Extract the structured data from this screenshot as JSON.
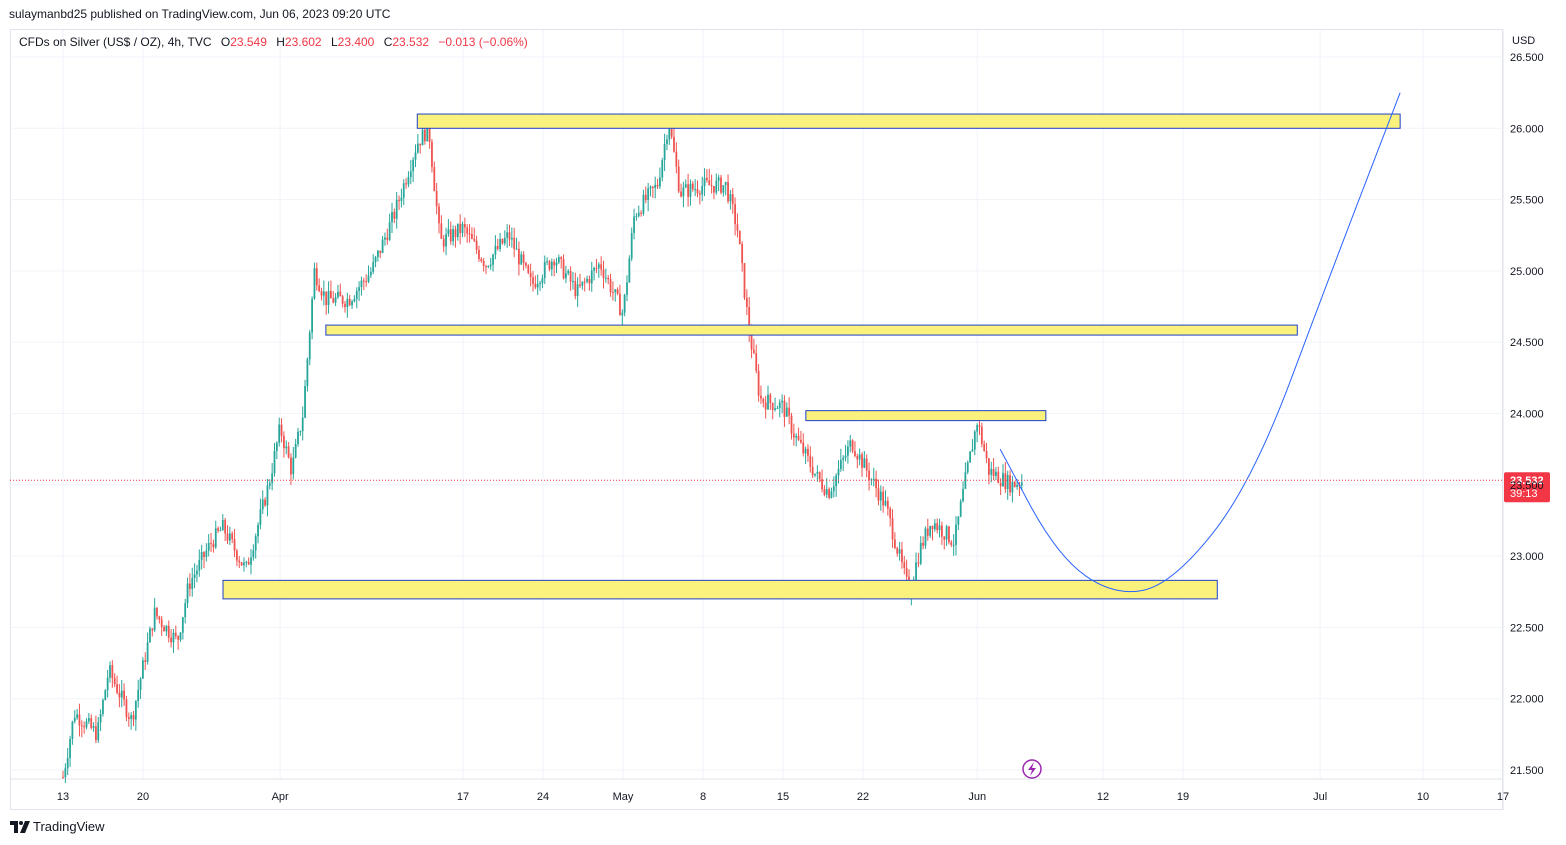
{
  "header": {
    "credit": "sulaymanbd25 published on TradingView.com, Jun 06, 2023 09:20 UTC"
  },
  "legend": {
    "symbol": "CFDs on Silver (US$ / OZ), 4h, TVC",
    "open_label": "O",
    "open": "23.549",
    "high_label": "H",
    "high": "23.602",
    "low_label": "L",
    "low": "23.400",
    "close_label": "C",
    "close": "23.532",
    "change": "−0.013 (−0.06%)"
  },
  "footer": {
    "brand": "TradingView"
  },
  "colors": {
    "up": "#26a69a",
    "down": "#ef5350",
    "zone_fill": "#fbf27e",
    "zone_border": "#1e40c8",
    "projection": "#2962ff",
    "price_line": "#f23645",
    "grid": "#f0f3fa",
    "flash_icon": "#9c27b0"
  },
  "icons": {
    "flash": "lightning-icon",
    "logo": "tradingview-logo-icon"
  },
  "chart_data": {
    "type": "candlestick",
    "currency_label": "USD",
    "y_ticks": [
      "26.500",
      "26.000",
      "25.500",
      "25.000",
      "24.500",
      "24.000",
      "23.500",
      "23.000",
      "22.500",
      "22.000",
      "21.500"
    ],
    "x_ticks": [
      "13",
      "20",
      "Apr",
      "17",
      "24",
      "May",
      "8",
      "15",
      "22",
      "Jun",
      "12",
      "19",
      "Jul",
      "10",
      "17"
    ],
    "ylim": [
      21.45,
      26.55
    ],
    "last_price": "23.532",
    "countdown": "39:13",
    "grid": true,
    "price_path": [
      [
        "2023-03-13",
        21.45
      ],
      [
        "2023-03-14",
        21.9
      ],
      [
        "2023-03-16",
        21.75
      ],
      [
        "2023-03-17",
        22.2
      ],
      [
        "2023-03-19",
        21.85
      ],
      [
        "2023-03-21",
        22.6
      ],
      [
        "2023-03-23",
        22.4
      ],
      [
        "2023-03-24",
        22.8
      ],
      [
        "2023-03-26",
        23.1
      ],
      [
        "2023-03-27",
        23.2
      ],
      [
        "2023-03-29",
        22.9
      ],
      [
        "2023-03-31",
        23.5
      ],
      [
        "2023-04-01",
        23.9
      ],
      [
        "2023-04-02",
        23.6
      ],
      [
        "2023-04-03",
        24.0
      ],
      [
        "2023-04-04",
        25.0
      ],
      [
        "2023-04-05",
        24.8
      ],
      [
        "2023-04-07",
        24.8
      ],
      [
        "2023-04-09",
        25.0
      ],
      [
        "2023-04-11",
        25.4
      ],
      [
        "2023-04-13",
        25.9
      ],
      [
        "2023-04-14",
        26.0
      ],
      [
        "2023-04-15",
        25.2
      ],
      [
        "2023-04-17",
        25.3
      ],
      [
        "2023-04-19",
        25.05
      ],
      [
        "2023-04-21",
        25.25
      ],
      [
        "2023-04-23",
        24.9
      ],
      [
        "2023-04-25",
        25.1
      ],
      [
        "2023-04-27",
        24.85
      ],
      [
        "2023-04-29",
        25.05
      ],
      [
        "2023-05-01",
        24.7
      ],
      [
        "2023-05-02",
        25.4
      ],
      [
        "2023-05-04",
        25.6
      ],
      [
        "2023-05-05",
        26.05
      ],
      [
        "2023-05-06",
        25.55
      ],
      [
        "2023-05-08",
        25.6
      ],
      [
        "2023-05-10",
        25.6
      ],
      [
        "2023-05-11",
        25.3
      ],
      [
        "2023-05-12",
        24.6
      ],
      [
        "2023-05-13",
        24.1
      ],
      [
        "2023-05-15",
        24.05
      ],
      [
        "2023-05-16",
        23.85
      ],
      [
        "2023-05-18",
        23.55
      ],
      [
        "2023-05-19",
        23.45
      ],
      [
        "2023-05-21",
        23.8
      ],
      [
        "2023-05-22",
        23.65
      ],
      [
        "2023-05-24",
        23.35
      ],
      [
        "2023-05-25",
        23.05
      ],
      [
        "2023-05-26",
        22.75
      ],
      [
        "2023-05-27",
        23.05
      ],
      [
        "2023-05-28",
        23.25
      ],
      [
        "2023-05-30",
        23.1
      ],
      [
        "2023-05-31",
        23.55
      ],
      [
        "2023-06-01",
        23.95
      ],
      [
        "2023-06-02",
        23.6
      ],
      [
        "2023-06-04",
        23.5
      ],
      [
        "2023-06-05",
        23.53
      ]
    ],
    "zones": [
      {
        "from": "2023-04-13",
        "to": "2023-07-08",
        "top": 26.1,
        "bottom": 26.0
      },
      {
        "from": "2023-04-05",
        "to": "2023-06-29",
        "top": 24.62,
        "bottom": 24.55
      },
      {
        "from": "2023-05-17",
        "to": "2023-06-07",
        "top": 24.02,
        "bottom": 23.95
      },
      {
        "from": "2023-03-27",
        "to": "2023-06-22",
        "top": 22.83,
        "bottom": 22.7
      }
    ],
    "projection": [
      [
        "2023-06-03",
        23.75
      ],
      [
        "2023-06-08",
        23.0
      ],
      [
        "2023-06-13",
        22.72
      ],
      [
        "2023-06-18",
        22.8
      ],
      [
        "2023-06-25",
        23.5
      ],
      [
        "2023-07-02",
        25.0
      ],
      [
        "2023-07-08",
        26.25
      ]
    ]
  }
}
